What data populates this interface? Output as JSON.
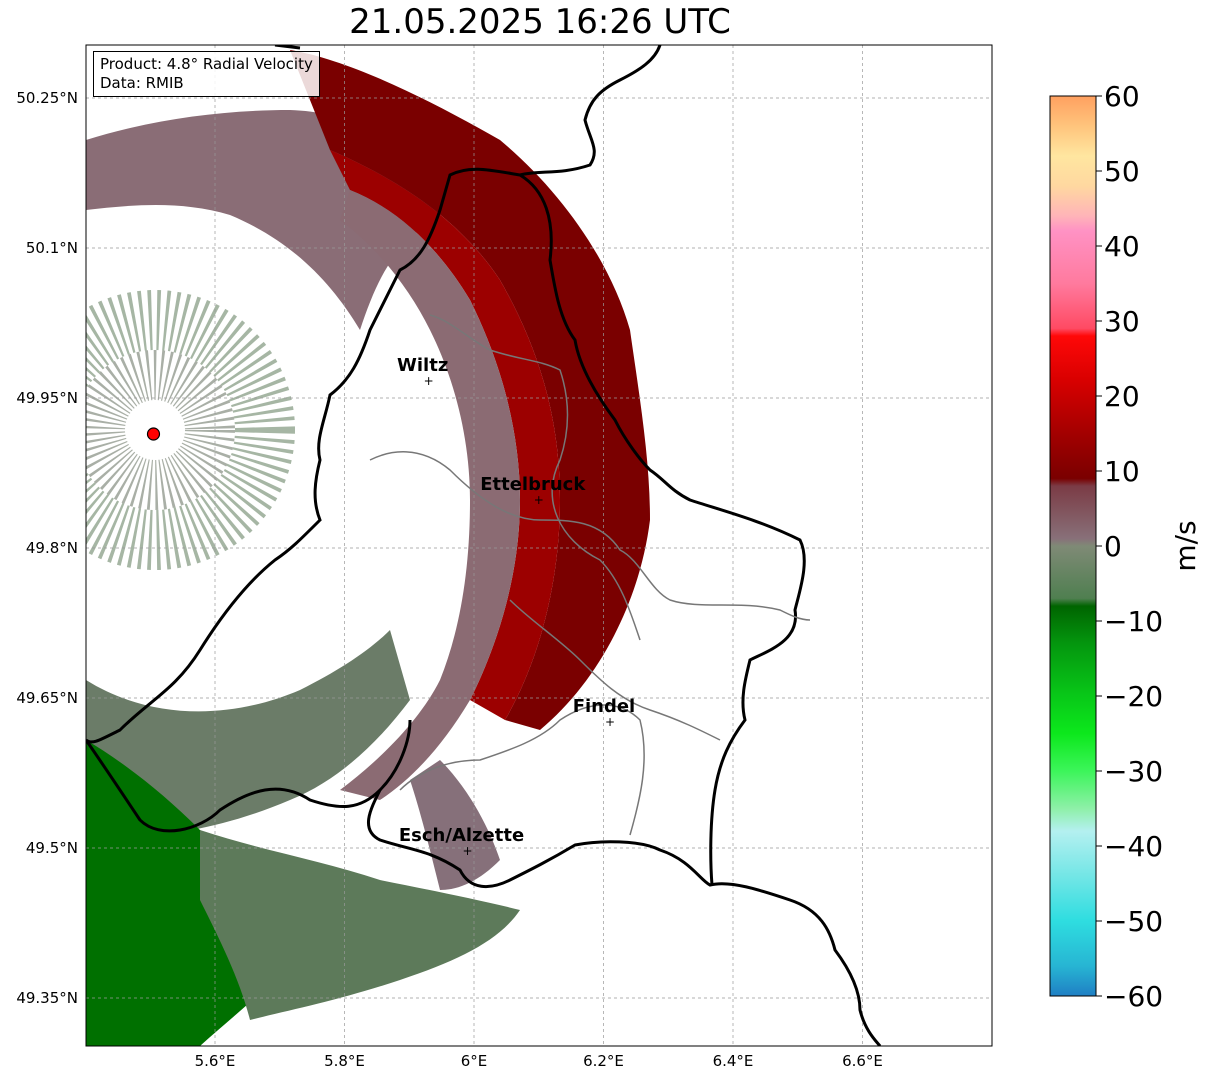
{
  "title": "21.05.2025 16:26 UTC",
  "info": {
    "product": "Product: 4.8° Radial Velocity",
    "data_source": "Data: RMIB"
  },
  "map": {
    "lon_ticks": [
      {
        "value": 5.6,
        "label": "5.6°E"
      },
      {
        "value": 5.8,
        "label": "5.8°E"
      },
      {
        "value": 6.0,
        "label": "6°E"
      },
      {
        "value": 6.2,
        "label": "6.2°E"
      },
      {
        "value": 6.4,
        "label": "6.4°E"
      },
      {
        "value": 6.6,
        "label": "6.6°E"
      }
    ],
    "lat_ticks": [
      {
        "value": 50.25,
        "label": "50.25°N"
      },
      {
        "value": 50.1,
        "label": "50.1°N"
      },
      {
        "value": 49.95,
        "label": "49.95°N"
      },
      {
        "value": 49.8,
        "label": "49.8°N"
      },
      {
        "value": 49.65,
        "label": "49.65°N"
      },
      {
        "value": 49.5,
        "label": "49.5°N"
      },
      {
        "value": 49.35,
        "label": "49.35°N"
      }
    ],
    "grid": true,
    "cities": [
      {
        "name": "Wiltz",
        "lon": 5.93,
        "lat": 49.967
      },
      {
        "name": "Ettelbruck",
        "lon": 6.1,
        "lat": 49.848
      },
      {
        "name": "Findel",
        "lon": 6.21,
        "lat": 49.626
      },
      {
        "name": "Esch/Alzette",
        "lon": 5.99,
        "lat": 49.497
      }
    ],
    "radar_site": {
      "lon": 5.505,
      "lat": 49.914,
      "color": "#ff0000"
    }
  },
  "colorbar": {
    "label": "m/s",
    "min": -60,
    "max": 60,
    "ticks": [
      {
        "value": 60,
        "label": "60"
      },
      {
        "value": 50,
        "label": "50"
      },
      {
        "value": 40,
        "label": "40"
      },
      {
        "value": 30,
        "label": "30"
      },
      {
        "value": 20,
        "label": "20"
      },
      {
        "value": 10,
        "label": "10"
      },
      {
        "value": 0,
        "label": "0"
      },
      {
        "value": -10,
        "label": "−10"
      },
      {
        "value": -20,
        "label": "−20"
      },
      {
        "value": -30,
        "label": "−30"
      },
      {
        "value": -40,
        "label": "−40"
      },
      {
        "value": -50,
        "label": "−50"
      },
      {
        "value": -60,
        "label": "−60"
      }
    ],
    "stops": [
      {
        "value": -60,
        "color": "#1f7fc4"
      },
      {
        "value": -56,
        "color": "#27b5d3"
      },
      {
        "value": -50,
        "color": "#2edde0"
      },
      {
        "value": -44,
        "color": "#73e6e6"
      },
      {
        "value": -38,
        "color": "#b4f0f0"
      },
      {
        "value": -35,
        "color": "#8ef0a8"
      },
      {
        "value": -30,
        "color": "#3cf55a"
      },
      {
        "value": -25,
        "color": "#0ce81c"
      },
      {
        "value": -20,
        "color": "#08c818"
      },
      {
        "value": -13,
        "color": "#04960e"
      },
      {
        "value": -8,
        "color": "#006400"
      },
      {
        "value": -7,
        "color": "#4f7f50"
      },
      {
        "value": 0,
        "color": "#7f8a76"
      },
      {
        "value": 1,
        "color": "#887079"
      },
      {
        "value": 8,
        "color": "#7b3b45"
      },
      {
        "value": 9,
        "color": "#7a0000"
      },
      {
        "value": 15,
        "color": "#a30000"
      },
      {
        "value": 22,
        "color": "#d80000"
      },
      {
        "value": 28,
        "color": "#ff0808"
      },
      {
        "value": 29,
        "color": "#ff4a63"
      },
      {
        "value": 35,
        "color": "#ff7a9e"
      },
      {
        "value": 42,
        "color": "#ff92c4"
      },
      {
        "value": 44,
        "color": "#ffb4b8"
      },
      {
        "value": 48,
        "color": "#ffd8a0"
      },
      {
        "value": 52,
        "color": "#ffe6a0"
      },
      {
        "value": 56,
        "color": "#ffc47c"
      },
      {
        "value": 60,
        "color": "#ffa060"
      }
    ]
  }
}
